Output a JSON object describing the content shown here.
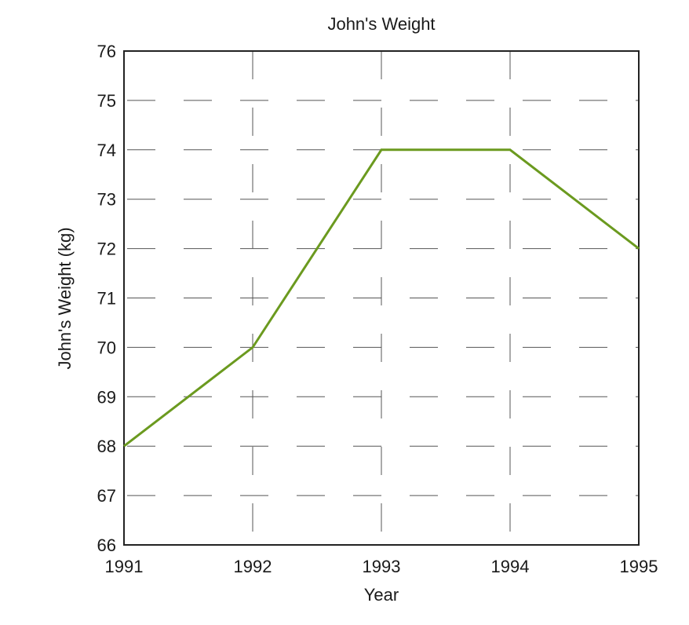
{
  "chart_data": {
    "type": "line",
    "title": "John's Weight",
    "xlabel": "Year",
    "ylabel": "John's Weight (kg)",
    "x": [
      1991,
      1992,
      1993,
      1994,
      1995
    ],
    "x_tick_labels": [
      "1991",
      "1992",
      "1993",
      "1994",
      "1995"
    ],
    "y_tick_labels": [
      "66",
      "67",
      "68",
      "69",
      "70",
      "71",
      "72",
      "73",
      "74",
      "75",
      "76"
    ],
    "xlim": [
      1991,
      1995
    ],
    "ylim": [
      66,
      76
    ],
    "grid": true,
    "series": [
      {
        "values": [
          68,
          70,
          74,
          74,
          72
        ],
        "color": "#6b9a1f"
      }
    ],
    "colors": {
      "line": "#6b9a1f",
      "grid": "#555555",
      "frame": "#222222"
    }
  }
}
